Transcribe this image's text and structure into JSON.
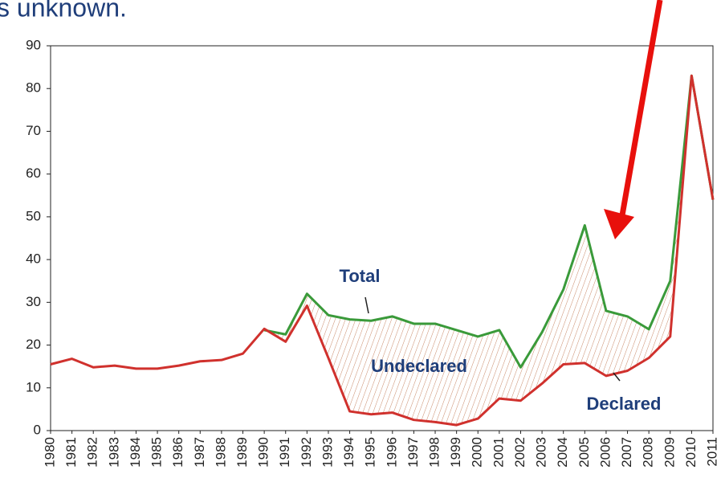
{
  "chart_data": {
    "type": "line",
    "title": "s unknown.",
    "categories": [
      "1980",
      "1981",
      "1982",
      "1983",
      "1984",
      "1985",
      "1986",
      "1987",
      "1988",
      "1989",
      "1990",
      "1991",
      "1992",
      "1993",
      "1994",
      "1995",
      "1996",
      "1997",
      "1998",
      "1999",
      "2000",
      "2001",
      "2002",
      "2003",
      "2004",
      "2005",
      "2006",
      "2007",
      "2008",
      "2009",
      "2010",
      "2011"
    ],
    "series": [
      {
        "name": "Total",
        "color": "#3a9a3a",
        "values": [
          null,
          null,
          null,
          null,
          null,
          null,
          null,
          null,
          null,
          null,
          23.5,
          22.5,
          32,
          27,
          26,
          25.7,
          26.7,
          25,
          25,
          23.5,
          22,
          23.5,
          14.8,
          23,
          33,
          48,
          28,
          26.7,
          23.7,
          35,
          83,
          54
        ]
      },
      {
        "name": "Declared",
        "color": "#d0312d",
        "values": [
          15.5,
          16.8,
          14.8,
          15.2,
          14.5,
          14.5,
          15.2,
          16.2,
          16.5,
          18,
          23.8,
          20.8,
          29.2,
          17,
          4.5,
          3.8,
          4.2,
          2.5,
          2,
          1.3,
          2.8,
          7.5,
          7,
          11,
          15.5,
          15.8,
          12.8,
          14,
          17,
          22,
          83,
          54
        ]
      }
    ],
    "annotations": [
      "Total",
      "Undeclared",
      "Declared"
    ],
    "ylim": [
      0,
      90
    ],
    "yticks": [
      0,
      10,
      20,
      30,
      40,
      50,
      60,
      70,
      80,
      90
    ]
  }
}
